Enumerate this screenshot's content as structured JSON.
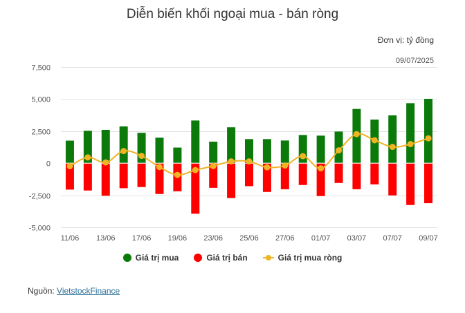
{
  "title": "Diễn biến khối ngoại mua - bán ròng",
  "unit_label": "Đơn vị: tỷ đồng",
  "date_label": "09/07/2025",
  "colors": {
    "buy": "#0b7a0b",
    "sell": "#ff0000",
    "net": "#f0b323",
    "grid": "#e2e2e2",
    "zero_line": "#ffffff"
  },
  "legend": [
    {
      "label": "Giá trị mua",
      "color": "#0b7a0b",
      "symbol": "circle"
    },
    {
      "label": "Giá trị bán",
      "color": "#ff0000",
      "symbol": "circle"
    },
    {
      "label": "Giá trị mua ròng",
      "color": "#f0b323",
      "symbol": "line-marker"
    }
  ],
  "source": {
    "prefix": "Nguồn: ",
    "link_text": "VietstockFinance"
  },
  "chart_data": {
    "type": "bar",
    "title": "Diễn biến khối ngoại mua - bán ròng",
    "subtitle": "Đơn vị: tỷ đồng",
    "xlabel": "",
    "ylabel": "",
    "ylim": [
      -5000,
      7500
    ],
    "yticks": [
      7500,
      5000,
      2500,
      0,
      -2500,
      -5000
    ],
    "ytick_labels": [
      "7,500",
      "5,000",
      "2,500",
      "0",
      "-2,500",
      "-5,000"
    ],
    "grid": true,
    "legend_position": "bottom",
    "categories": [
      "11/06",
      "12/06",
      "13/06",
      "16/06",
      "17/06",
      "18/06",
      "19/06",
      "20/06",
      "23/06",
      "24/06",
      "25/06",
      "26/06",
      "27/06",
      "30/06",
      "01/07",
      "02/07",
      "03/07",
      "04/07",
      "07/07",
      "08/07",
      "09/07"
    ],
    "visible_xtick_labels": [
      "11/06",
      "13/06",
      "17/06",
      "19/06",
      "23/06",
      "25/06",
      "27/06",
      "01/07",
      "03/07",
      "07/07",
      "09/07"
    ],
    "series": [
      {
        "name": "Giá trị mua",
        "type": "bar",
        "color": "#0b7a0b",
        "values": [
          1760,
          2530,
          2600,
          2870,
          2370,
          1990,
          1220,
          3330,
          1680,
          2800,
          1880,
          1880,
          1770,
          2200,
          2150,
          2470,
          4230,
          3400,
          3730,
          4680,
          5020
        ]
      },
      {
        "name": "Giá trị bán",
        "type": "bar",
        "color": "#ff0000",
        "values": [
          -2060,
          -2130,
          -2540,
          -1950,
          -1860,
          -2400,
          -2190,
          -3940,
          -1920,
          -2720,
          -1790,
          -2240,
          -2030,
          -1700,
          -2560,
          -1540,
          -2030,
          -1650,
          -2510,
          -3260,
          -3120
        ]
      },
      {
        "name": "Giá trị mua ròng",
        "type": "line",
        "color": "#f0b323",
        "values": [
          -230,
          450,
          60,
          950,
          570,
          -300,
          -910,
          -540,
          -220,
          140,
          140,
          -320,
          -180,
          550,
          -400,
          1000,
          2270,
          1790,
          1270,
          1490,
          1940
        ]
      }
    ]
  }
}
